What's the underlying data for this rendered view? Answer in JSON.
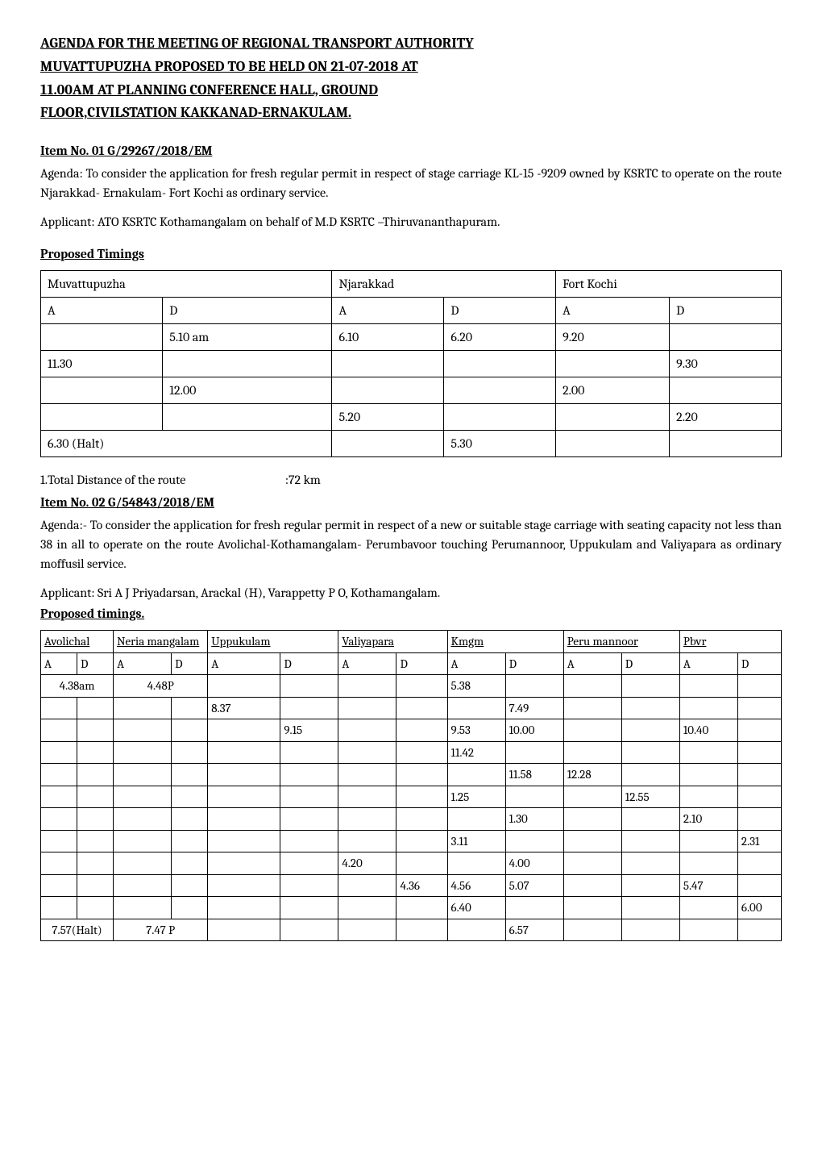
{
  "title_line1": "AGENDA FOR THE MEETING OF REGIONAL TRANSPORT AUTHORITY",
  "title_line2": "MUVATTUPUZHA PROPOSED TO BE HELD ON 21-07-2018 AT",
  "title_line3": "11.00AM AT PLANNING CONFERENCE HALL, GROUND",
  "title_line4": "FLOOR,CIVILSTATION KAKKANAD-ERNAKULAM.",
  "item01": {
    "heading": "Item No.  01     G/29267/2018/EM",
    "agenda": "Agenda: To consider the application for fresh regular permit in respect of stage carriage KL-15 -9209 owned by KSRTC to operate on the route Njarakkad- Ernakulam- Fort Kochi  as ordinary service.",
    "applicant": "Applicant: ATO KSRTC Kothamangalam on behalf of M.D KSRTC –Thiruvananthapuram.",
    "timings_heading": "Proposed Timings",
    "table": {
      "headers": [
        "Muvattupuzha",
        "Njarakkad",
        "Fort Kochi"
      ],
      "sub": [
        "A",
        "D",
        "A",
        "D",
        "A",
        "D"
      ],
      "rows": [
        [
          "",
          "5.10 am",
          "6.10",
          "6.20",
          "9.20",
          ""
        ],
        [
          "11.30",
          "",
          "",
          "",
          "",
          "9.30"
        ],
        [
          "",
          "12.00",
          "",
          "",
          "2.00",
          ""
        ],
        [
          "",
          "",
          "5.20",
          "",
          "",
          "2.20"
        ],
        [
          "6.30 (Halt)",
          "",
          "",
          "5.30",
          "",
          ""
        ]
      ]
    },
    "distance_label": "1.Total Distance of the route",
    "distance_value": ":72  km"
  },
  "item02": {
    "heading": "Item No.  02     G/54843/2018/EM",
    "agenda": "Agenda:- To consider the application for fresh regular permit in respect of a new  or suitable stage carriage with seating capacity not less than 38 in all to operate on the route Avolichal-Kothamangalam- Perumbavoor touching Perumannoor, Uppukulam and Valiyapara as ordinary moffusil service.",
    "applicant": "Applicant: Sri A J Priyadarsan, Arackal (H), Varappetty P O, Kothamangalam.",
    "timings_heading": "Proposed timings.",
    "table": {
      "col_headers": [
        "Avolichal",
        "Neria mangalam",
        "Uppukulam",
        "Valiyapara",
        "Kmgm",
        "Peru mannoor",
        "Pbvr"
      ],
      "sub": [
        "A",
        "D",
        "A",
        "D",
        "A",
        "D",
        "A",
        "D",
        "A",
        "D",
        "A",
        "D",
        "A",
        "D"
      ],
      "rows": [
        {
          "cells": [
            {
              "text": "4.38am",
              "colspan": 2
            },
            {
              "text": "4.48P",
              "colspan": 2
            },
            "",
            "",
            "",
            "",
            "5.38",
            "",
            "",
            "",
            "",
            ""
          ]
        },
        {
          "cells": [
            "",
            "",
            "",
            "",
            "8.37",
            "",
            "",
            "",
            "",
            "7.49",
            "",
            "",
            "",
            ""
          ]
        },
        {
          "cells": [
            "",
            "",
            "",
            "",
            "",
            "9.15",
            "",
            "",
            "9.53",
            "10.00",
            "",
            "",
            "10.40",
            ""
          ]
        },
        {
          "cells": [
            "",
            "",
            "",
            "",
            "",
            "",
            "",
            "",
            "11.42",
            "",
            "",
            "",
            "",
            ""
          ]
        },
        {
          "cells": [
            "",
            "",
            "",
            "",
            "",
            "",
            "",
            "",
            "",
            "11.58",
            "12.28",
            "",
            "",
            ""
          ]
        },
        {
          "cells": [
            "",
            "",
            "",
            "",
            "",
            "",
            "",
            "",
            "1.25",
            "",
            "",
            "12.55",
            "",
            ""
          ]
        },
        {
          "cells": [
            "",
            "",
            "",
            "",
            "",
            "",
            "",
            "",
            "",
            "1.30",
            "",
            "",
            "2.10",
            ""
          ]
        },
        {
          "cells": [
            "",
            "",
            "",
            "",
            "",
            "",
            "",
            "",
            "3.11",
            "",
            "",
            "",
            "",
            "2.31"
          ]
        },
        {
          "cells": [
            "",
            "",
            "",
            "",
            "",
            "",
            "4.20",
            "",
            "",
            "4.00",
            "",
            "",
            "",
            ""
          ]
        },
        {
          "cells": [
            "",
            "",
            "",
            "",
            "",
            "",
            "",
            "4.36",
            "4.56",
            "5.07",
            "",
            "",
            "5.47",
            ""
          ]
        },
        {
          "cells": [
            "",
            "",
            "",
            "",
            "",
            "",
            "",
            "",
            "6.40",
            "",
            "",
            "",
            "",
            "6.00"
          ]
        },
        {
          "cells": [
            {
              "text": "7.57(Halt)",
              "colspan": 2
            },
            {
              "text": "7.47 P",
              "colspan": 2
            },
            "",
            "",
            "",
            "",
            "",
            "6.57",
            "",
            "",
            "",
            ""
          ]
        }
      ]
    }
  }
}
